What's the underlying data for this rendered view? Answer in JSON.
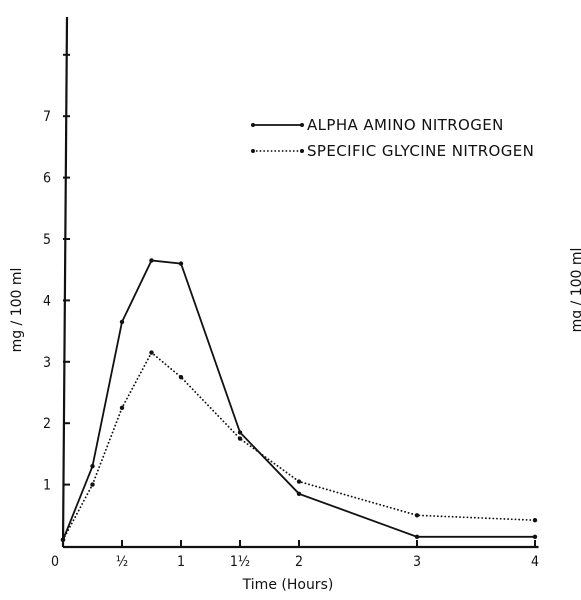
{
  "chart_data": {
    "type": "line",
    "xlabel": "Time (Hours)",
    "ylabel": "mg / 100 ml",
    "ylabel_right": "mg / 100 ml",
    "xlim": [
      0,
      4
    ],
    "ylim": [
      0,
      8.6
    ],
    "x_ticks": [
      {
        "value": 0,
        "label": "0"
      },
      {
        "value": 0.5,
        "label": "½"
      },
      {
        "value": 1,
        "label": "1"
      },
      {
        "value": 1.5,
        "label": "1½"
      },
      {
        "value": 2,
        "label": "2"
      },
      {
        "value": 3,
        "label": "3"
      },
      {
        "value": 4,
        "label": "4"
      }
    ],
    "y_ticks": [
      {
        "value": 1,
        "label": "1"
      },
      {
        "value": 2,
        "label": "2"
      },
      {
        "value": 3,
        "label": "3"
      },
      {
        "value": 4,
        "label": "4"
      },
      {
        "value": 5,
        "label": "5"
      },
      {
        "value": 6,
        "label": "6"
      },
      {
        "value": 7,
        "label": "7"
      },
      {
        "value": 8,
        "label": ""
      }
    ],
    "legend_position": "top-right",
    "grid": false,
    "series": [
      {
        "name": "ALPHA AMINO NITROGEN",
        "style": "solid",
        "color": "#111111",
        "x": [
          0,
          0.25,
          0.5,
          0.75,
          1,
          1.5,
          2,
          3,
          4
        ],
        "y": [
          0.1,
          1.3,
          3.65,
          4.65,
          4.6,
          1.85,
          0.85,
          0.15,
          0.15
        ]
      },
      {
        "name": "SPECIFIC GLYCINE NITROGEN",
        "style": "dotted",
        "color": "#111111",
        "x": [
          0,
          0.25,
          0.5,
          0.75,
          1,
          1.5,
          2,
          3,
          4
        ],
        "y": [
          0.1,
          1.0,
          2.25,
          3.15,
          2.75,
          1.75,
          1.05,
          0.5,
          0.42
        ]
      }
    ]
  }
}
